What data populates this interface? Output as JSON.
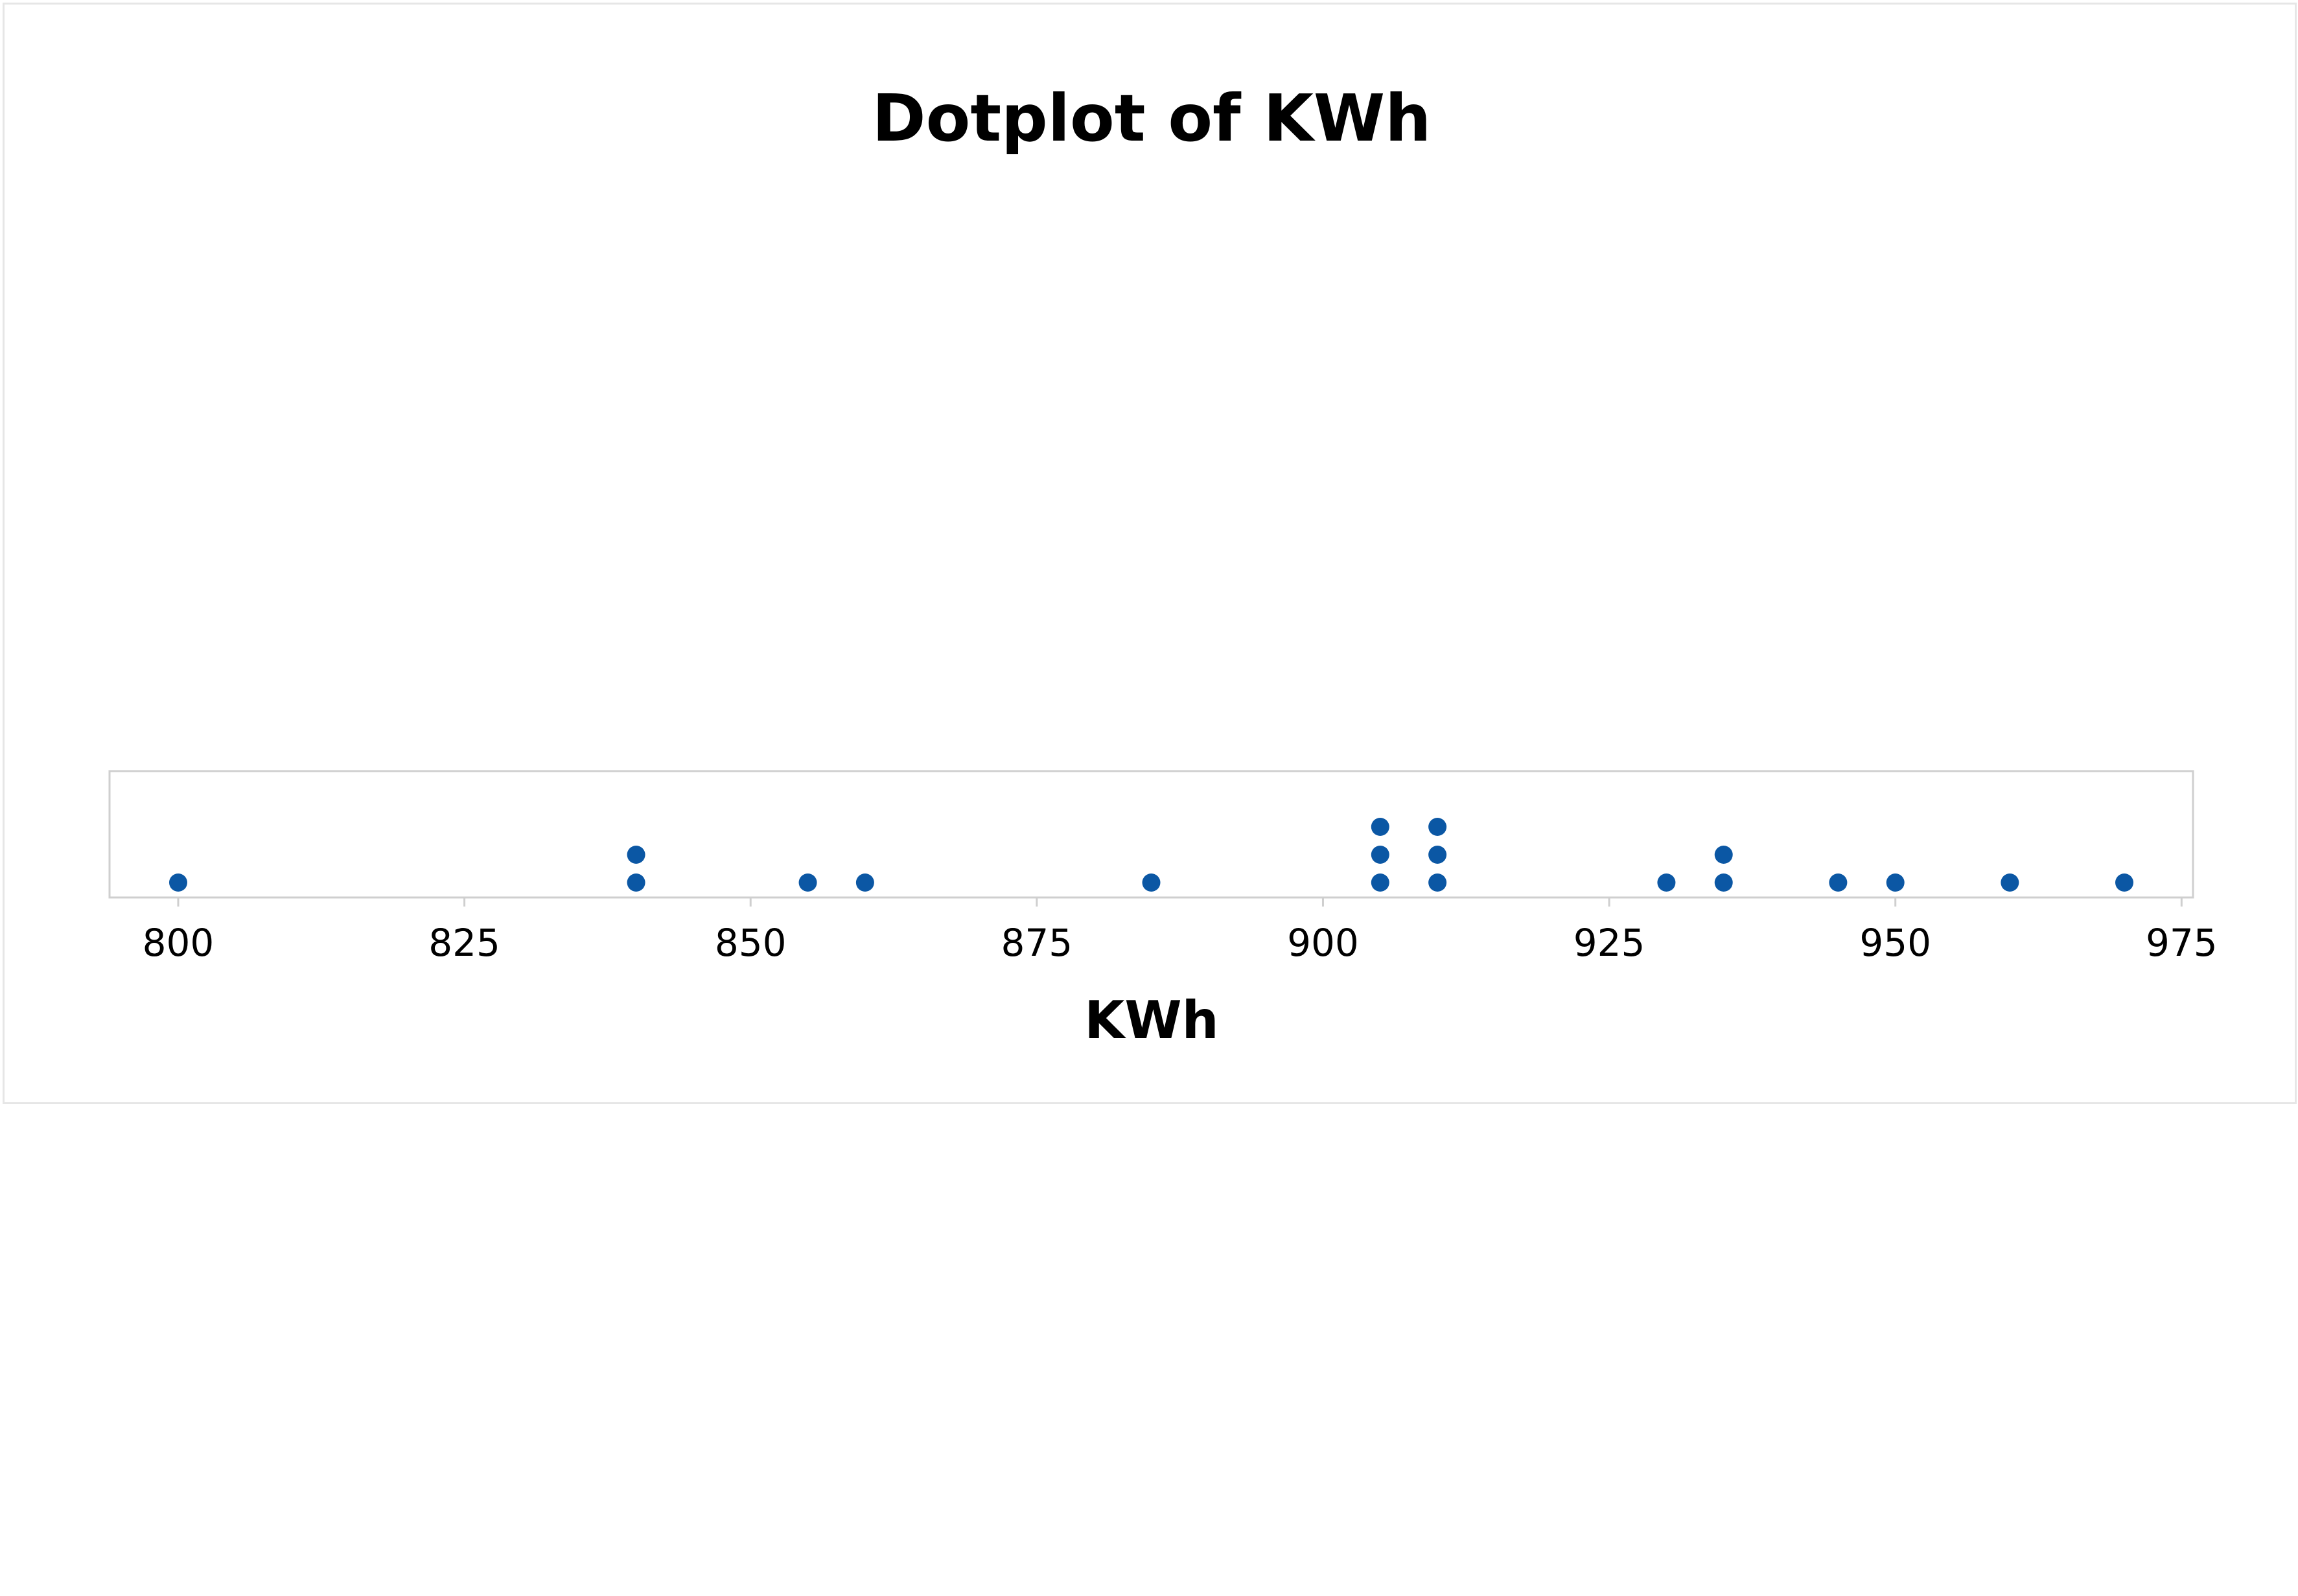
{
  "chart_data": {
    "type": "scatter",
    "subtype": "dotplot",
    "title": "Dotplot of KWh",
    "xlabel": "KWh",
    "ylabel": "",
    "xlim": [
      794,
      976
    ],
    "xticks": [
      800,
      825,
      850,
      875,
      900,
      925,
      950,
      975
    ],
    "grid": false,
    "legend": "none",
    "marker_color": "#0b57a4",
    "series": [
      {
        "values": [
          800,
          840,
          840,
          855,
          860,
          885,
          905,
          905,
          905,
          910,
          910,
          910,
          930,
          935,
          935,
          945,
          950,
          960,
          970
        ]
      }
    ]
  }
}
